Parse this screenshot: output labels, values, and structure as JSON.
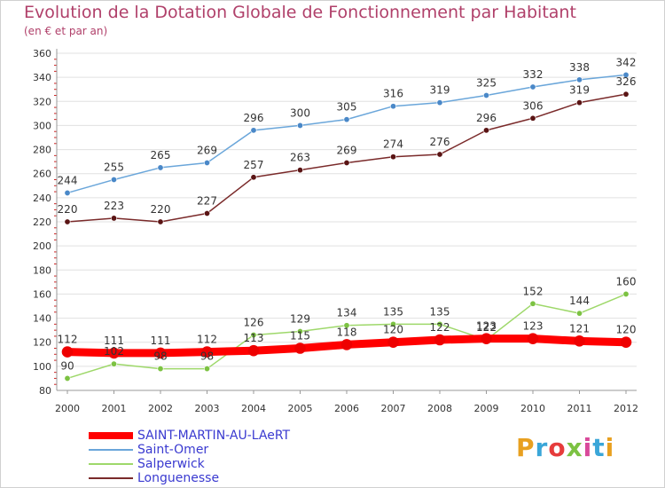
{
  "header": {
    "title": "Evolution de la Dotation Globale de Fonctionnement par Habitant",
    "subtitle": "(en € et par an)"
  },
  "logo": {
    "text": "Proxiti",
    "colors": [
      "#e8a020",
      "#3aa6d8",
      "#e63c3c",
      "#7cc242",
      "#d94a9a",
      "#3aa6d8",
      "#e8a020"
    ]
  },
  "colors": {
    "axis": "#999999",
    "grid": "#e0e0e0",
    "tick_red": "#cc2222",
    "label": "#333333"
  },
  "chart_data": {
    "type": "line",
    "title": "Evolution de la Dotation Globale de Fonctionnement par Habitant",
    "subtitle": "(en € et par an)",
    "x": [
      "2000",
      "2001",
      "2002",
      "2003",
      "2004",
      "2005",
      "2006",
      "2007",
      "2008",
      "2009",
      "2010",
      "2011",
      "2012"
    ],
    "ylim": [
      80,
      360
    ],
    "yticks": [
      "80",
      "100",
      "120",
      "140",
      "160",
      "180",
      "200",
      "220",
      "240",
      "260",
      "280",
      "300",
      "320",
      "340",
      "360"
    ],
    "grid": true,
    "legend": "bottom-left",
    "series": [
      {
        "name": "SAINT-MARTIN-AU-LAeRT",
        "color": "#ff0000",
        "marker": "#ee0000",
        "width": 9,
        "values": [
          112,
          111,
          111,
          112,
          113,
          115,
          118,
          120,
          122,
          123,
          123,
          121,
          120
        ],
        "labels": [
          "112",
          "111",
          "111",
          "112",
          "113",
          "115",
          "118",
          "120",
          "122",
          "123",
          "123",
          "121",
          "120"
        ]
      },
      {
        "name": "Saint-Omer",
        "color": "#6aa6da",
        "marker": "#4a88c8",
        "width": 1.5,
        "values": [
          244,
          255,
          265,
          269,
          296,
          300,
          305,
          316,
          319,
          325,
          332,
          338,
          342
        ],
        "labels": [
          "244",
          "255",
          "265",
          "269",
          "296",
          "300",
          "305",
          "316",
          "319",
          "325",
          "332",
          "338",
          "342"
        ]
      },
      {
        "name": "Salperwick",
        "color": "#9ed86a",
        "marker": "#7cc242",
        "width": 1.5,
        "values": [
          90,
          102,
          98,
          98,
          126,
          129,
          134,
          135,
          135,
          122,
          152,
          144,
          160
        ],
        "labels": [
          "90",
          "102",
          "98",
          "98",
          "126",
          "129",
          "134",
          "135",
          "135",
          "122",
          "152",
          "144",
          "160"
        ]
      },
      {
        "name": "Longuenesse",
        "color": "#7a2a2a",
        "marker": "#5a1414",
        "width": 1.5,
        "values": [
          220,
          223,
          220,
          227,
          257,
          263,
          269,
          274,
          276,
          296,
          306,
          319,
          326
        ],
        "labels": [
          "220",
          "223",
          "220",
          "227",
          "257",
          "263",
          "269",
          "274",
          "276",
          "296",
          "306",
          "319",
          "326"
        ]
      }
    ]
  }
}
